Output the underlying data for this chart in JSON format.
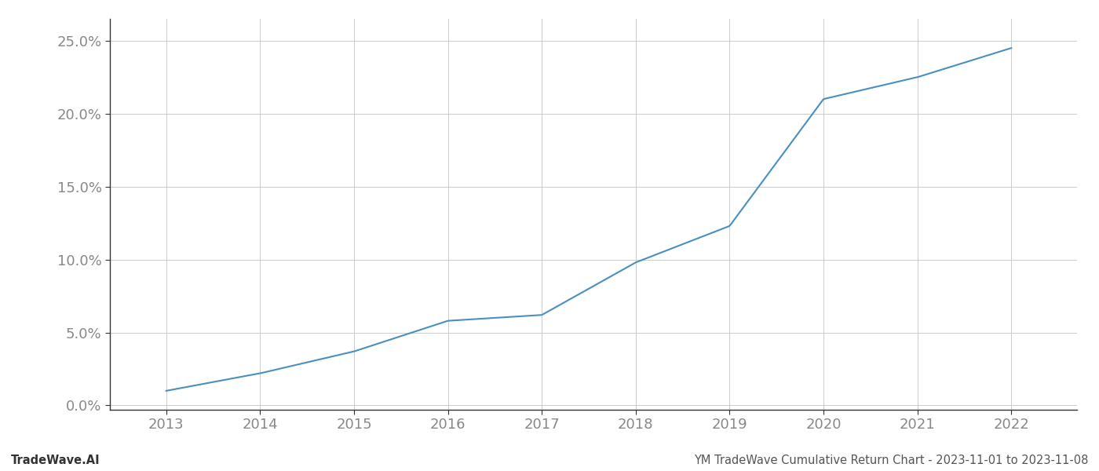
{
  "x_years": [
    2013,
    2014,
    2015,
    2016,
    2017,
    2018,
    2019,
    2020,
    2021,
    2022
  ],
  "y_values": [
    0.01,
    0.022,
    0.037,
    0.058,
    0.062,
    0.098,
    0.123,
    0.21,
    0.225,
    0.245
  ],
  "line_color": "#4a8fc0",
  "line_width": 1.5,
  "background_color": "#ffffff",
  "grid_color": "#cccccc",
  "ylabel_ticks": [
    0.0,
    0.05,
    0.1,
    0.15,
    0.2,
    0.25
  ],
  "ylabel_labels": [
    "0.0%",
    "5.0%",
    "10.0%",
    "15.0%",
    "20.0%",
    "25.0%"
  ],
  "xlim": [
    2012.4,
    2022.7
  ],
  "ylim": [
    -0.003,
    0.265
  ],
  "xtick_years": [
    2013,
    2014,
    2015,
    2016,
    2017,
    2018,
    2019,
    2020,
    2021,
    2022
  ],
  "footer_left": "TradeWave.AI",
  "footer_right": "YM TradeWave Cumulative Return Chart - 2023-11-01 to 2023-11-08",
  "footer_fontsize": 10.5,
  "tick_label_color": "#888888",
  "tick_label_fontsize": 13,
  "spine_color": "#333333"
}
